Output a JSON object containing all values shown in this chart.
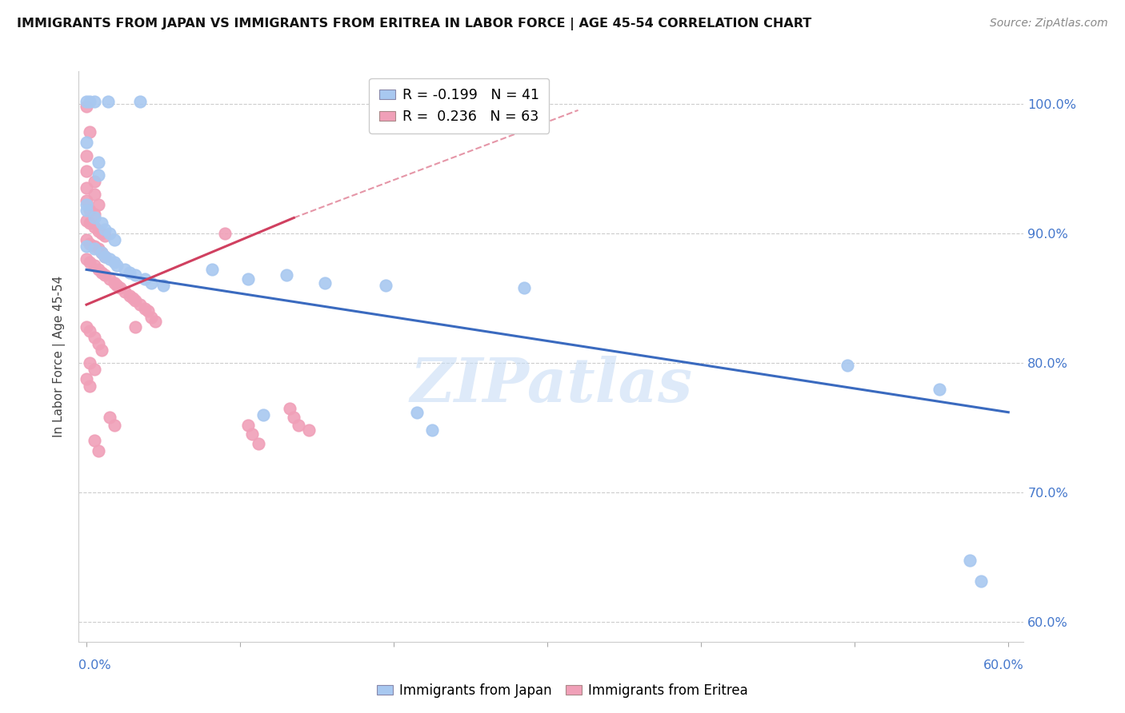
{
  "title": "IMMIGRANTS FROM JAPAN VS IMMIGRANTS FROM ERITREA IN LABOR FORCE | AGE 45-54 CORRELATION CHART",
  "source": "Source: ZipAtlas.com",
  "ylabel": "In Labor Force | Age 45-54",
  "ytick_labels": [
    "60.0%",
    "70.0%",
    "80.0%",
    "90.0%",
    "100.0%"
  ],
  "ytick_values": [
    0.6,
    0.7,
    0.8,
    0.9,
    1.0
  ],
  "xlim": [
    -0.005,
    0.61
  ],
  "ylim": [
    0.585,
    1.025
  ],
  "watermark": "ZIPatlas",
  "japan_color": "#a8c8f0",
  "eritrea_color": "#f0a0b8",
  "japan_line_color": "#3a6abf",
  "eritrea_line_color": "#d04060",
  "japan_scatter": [
    [
      0.0,
      1.002
    ],
    [
      0.002,
      1.002
    ],
    [
      0.005,
      1.002
    ],
    [
      0.014,
      1.002
    ],
    [
      0.035,
      1.002
    ],
    [
      0.0,
      0.97
    ],
    [
      0.008,
      0.955
    ],
    [
      0.008,
      0.945
    ],
    [
      0.0,
      0.922
    ],
    [
      0.0,
      0.918
    ],
    [
      0.005,
      0.912
    ],
    [
      0.01,
      0.908
    ],
    [
      0.012,
      0.903
    ],
    [
      0.015,
      0.9
    ],
    [
      0.018,
      0.895
    ],
    [
      0.0,
      0.89
    ],
    [
      0.005,
      0.888
    ],
    [
      0.01,
      0.885
    ],
    [
      0.012,
      0.882
    ],
    [
      0.015,
      0.88
    ],
    [
      0.018,
      0.878
    ],
    [
      0.02,
      0.875
    ],
    [
      0.025,
      0.872
    ],
    [
      0.028,
      0.87
    ],
    [
      0.032,
      0.868
    ],
    [
      0.038,
      0.865
    ],
    [
      0.042,
      0.862
    ],
    [
      0.05,
      0.86
    ],
    [
      0.082,
      0.872
    ],
    [
      0.105,
      0.865
    ],
    [
      0.115,
      0.76
    ],
    [
      0.13,
      0.868
    ],
    [
      0.155,
      0.862
    ],
    [
      0.195,
      0.86
    ],
    [
      0.215,
      0.762
    ],
    [
      0.225,
      0.748
    ],
    [
      0.285,
      0.858
    ],
    [
      0.495,
      0.798
    ],
    [
      0.555,
      0.78
    ],
    [
      0.575,
      0.648
    ],
    [
      0.582,
      0.632
    ]
  ],
  "eritrea_scatter": [
    [
      0.0,
      0.998
    ],
    [
      0.002,
      0.978
    ],
    [
      0.0,
      0.96
    ],
    [
      0.0,
      0.948
    ],
    [
      0.005,
      0.94
    ],
    [
      0.0,
      0.935
    ],
    [
      0.005,
      0.93
    ],
    [
      0.0,
      0.925
    ],
    [
      0.008,
      0.922
    ],
    [
      0.002,
      0.918
    ],
    [
      0.005,
      0.915
    ],
    [
      0.0,
      0.91
    ],
    [
      0.002,
      0.908
    ],
    [
      0.005,
      0.905
    ],
    [
      0.008,
      0.902
    ],
    [
      0.01,
      0.9
    ],
    [
      0.012,
      0.898
    ],
    [
      0.0,
      0.895
    ],
    [
      0.002,
      0.892
    ],
    [
      0.005,
      0.89
    ],
    [
      0.008,
      0.888
    ],
    [
      0.01,
      0.885
    ],
    [
      0.012,
      0.882
    ],
    [
      0.0,
      0.88
    ],
    [
      0.002,
      0.878
    ],
    [
      0.005,
      0.875
    ],
    [
      0.008,
      0.872
    ],
    [
      0.01,
      0.87
    ],
    [
      0.012,
      0.868
    ],
    [
      0.015,
      0.865
    ],
    [
      0.018,
      0.862
    ],
    [
      0.02,
      0.86
    ],
    [
      0.022,
      0.858
    ],
    [
      0.025,
      0.855
    ],
    [
      0.028,
      0.852
    ],
    [
      0.03,
      0.85
    ],
    [
      0.032,
      0.848
    ],
    [
      0.035,
      0.845
    ],
    [
      0.038,
      0.842
    ],
    [
      0.04,
      0.84
    ],
    [
      0.042,
      0.835
    ],
    [
      0.045,
      0.832
    ],
    [
      0.0,
      0.828
    ],
    [
      0.002,
      0.825
    ],
    [
      0.005,
      0.82
    ],
    [
      0.008,
      0.815
    ],
    [
      0.01,
      0.81
    ],
    [
      0.002,
      0.8
    ],
    [
      0.005,
      0.795
    ],
    [
      0.0,
      0.788
    ],
    [
      0.002,
      0.782
    ],
    [
      0.015,
      0.758
    ],
    [
      0.018,
      0.752
    ],
    [
      0.09,
      0.9
    ],
    [
      0.105,
      0.752
    ],
    [
      0.108,
      0.745
    ],
    [
      0.112,
      0.738
    ],
    [
      0.132,
      0.765
    ],
    [
      0.135,
      0.758
    ],
    [
      0.138,
      0.752
    ],
    [
      0.145,
      0.748
    ],
    [
      0.032,
      0.828
    ],
    [
      0.005,
      0.74
    ],
    [
      0.008,
      0.732
    ]
  ],
  "japan_trendline": [
    [
      0.0,
      0.872
    ],
    [
      0.6,
      0.762
    ]
  ],
  "eritrea_trendline_solid": [
    [
      0.0,
      0.845
    ],
    [
      0.135,
      0.912
    ]
  ],
  "eritrea_trendline_dashed": [
    [
      0.135,
      0.912
    ],
    [
      0.32,
      0.995
    ]
  ]
}
